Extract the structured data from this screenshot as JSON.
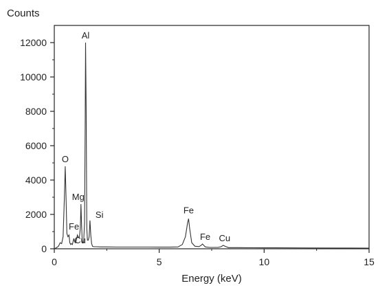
{
  "chart_data": {
    "type": "line",
    "title": "",
    "xlabel": "Energy (keV)",
    "ylabel": "Counts",
    "xlim": [
      0,
      15
    ],
    "ylim": [
      0,
      13000
    ],
    "x_ticks": [
      0,
      5,
      10,
      15
    ],
    "y_ticks": [
      0,
      2000,
      4000,
      6000,
      8000,
      10000,
      12000
    ],
    "grid": false,
    "line_color": "#333333",
    "series": [
      {
        "x": [
          0.0,
          0.1,
          0.2,
          0.28,
          0.35,
          0.42,
          0.48,
          0.52,
          0.56,
          0.6,
          0.65,
          0.7,
          0.74,
          0.78,
          0.82,
          0.86,
          0.9,
          0.93,
          0.97,
          1.01,
          1.05,
          1.1,
          1.15,
          1.2,
          1.24,
          1.27,
          1.3,
          1.33,
          1.36,
          1.4,
          1.44,
          1.47,
          1.49,
          1.52,
          1.55,
          1.58,
          1.62,
          1.66,
          1.7,
          1.74,
          1.78,
          1.82,
          1.88,
          2.0,
          2.2,
          2.5,
          3.0,
          3.5,
          4.0,
          4.5,
          5.0,
          5.5,
          5.9,
          6.1,
          6.25,
          6.35,
          6.4,
          6.45,
          6.55,
          6.7,
          6.9,
          7.0,
          7.06,
          7.12,
          7.2,
          7.4,
          7.8,
          7.95,
          8.05,
          8.15,
          8.3,
          8.8,
          9.5,
          10.5,
          12.0,
          13.5,
          15.0
        ],
        "y": [
          0,
          60,
          150,
          350,
          300,
          700,
          3000,
          4800,
          3000,
          900,
          700,
          800,
          350,
          250,
          300,
          250,
          450,
          600,
          400,
          350,
          500,
          800,
          650,
          700,
          1200,
          2600,
          1400,
          500,
          350,
          400,
          1500,
          7000,
          12000,
          8000,
          1200,
          500,
          500,
          700,
          1650,
          800,
          300,
          150,
          120,
          120,
          110,
          110,
          100,
          100,
          100,
          100,
          95,
          95,
          110,
          250,
          700,
          1500,
          1750,
          1200,
          350,
          150,
          130,
          200,
          280,
          200,
          110,
          80,
          80,
          120,
          200,
          140,
          70,
          70,
          60,
          55,
          50,
          45,
          40
        ]
      }
    ],
    "annotations": [
      {
        "text": "Al",
        "x": 1.49,
        "y": 12000
      },
      {
        "text": "O",
        "x": 0.52,
        "y": 4800
      },
      {
        "text": "Mg",
        "x": 1.27,
        "y": 2600
      },
      {
        "text": "Si",
        "x": 1.7,
        "y": 1650
      },
      {
        "text": "Fe",
        "x": 0.74,
        "y": 800
      },
      {
        "text": "Cu",
        "x": 0.97,
        "y": 400
      },
      {
        "text": "Fe",
        "x": 6.4,
        "y": 1750
      },
      {
        "text": "Fe",
        "x": 7.06,
        "y": 280
      },
      {
        "text": "Cu",
        "x": 8.05,
        "y": 200
      }
    ]
  }
}
